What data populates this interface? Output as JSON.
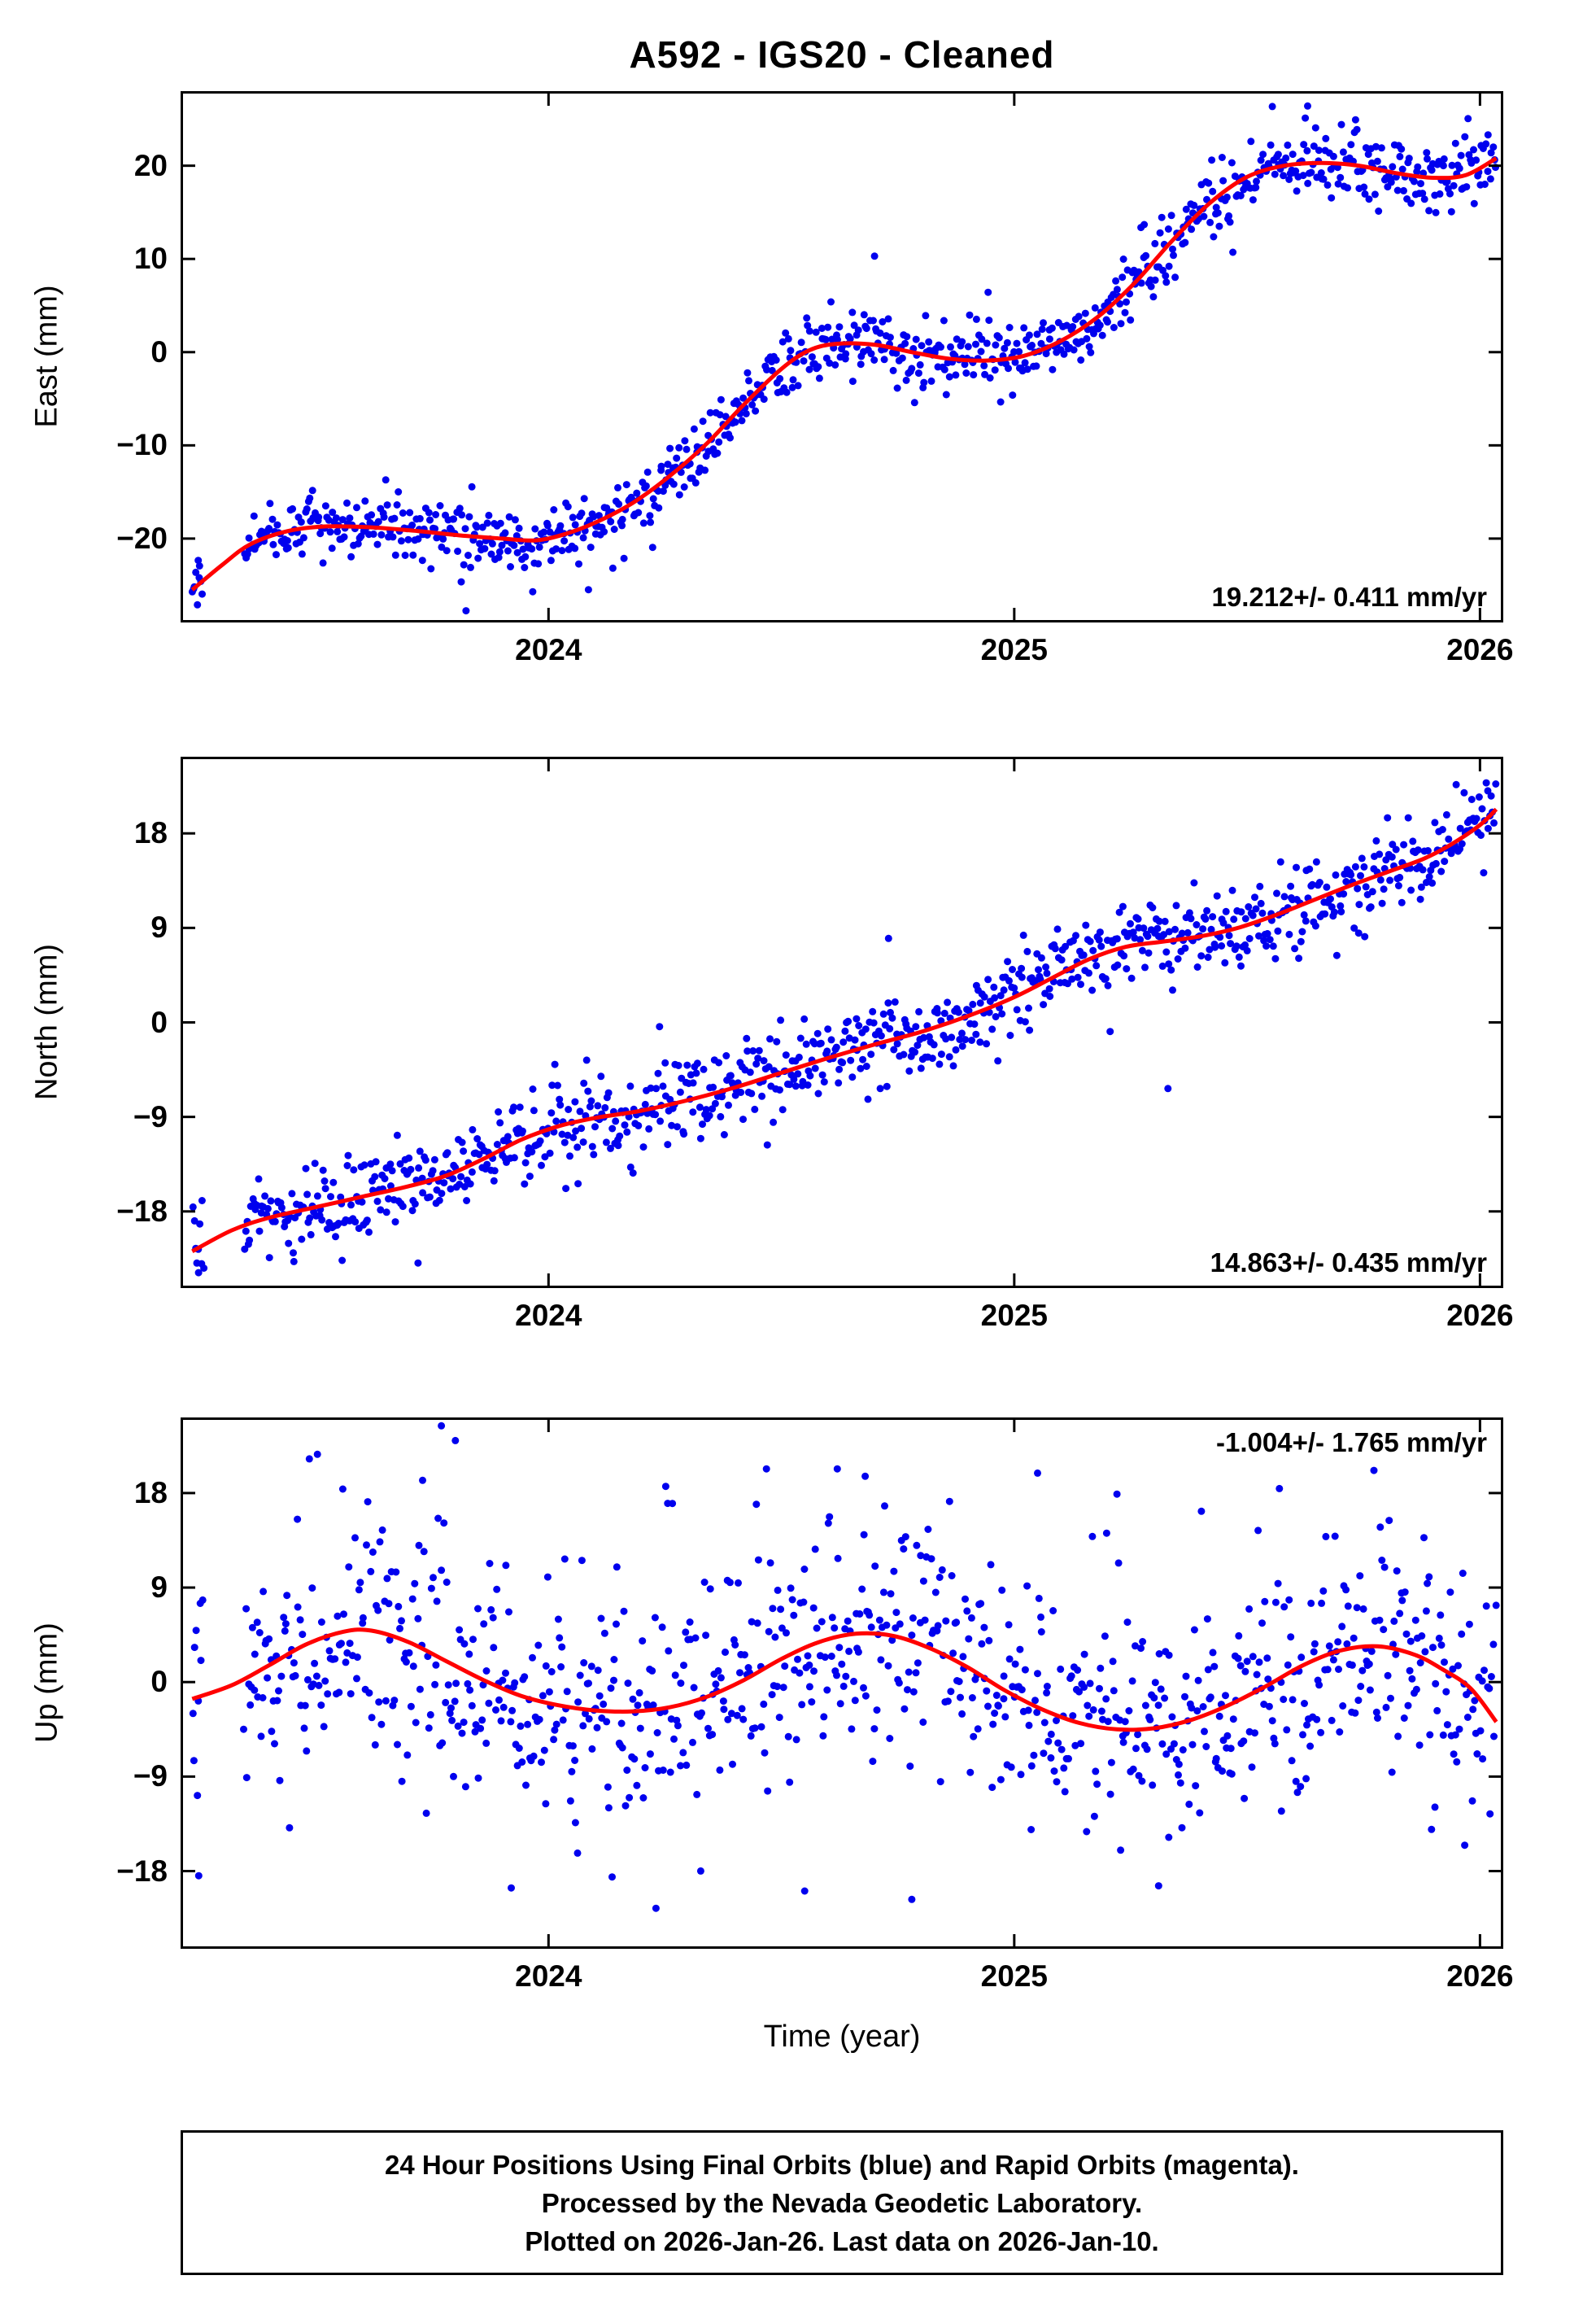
{
  "title": "A592  - IGS20 - Cleaned",
  "xlabel": "Time (year)",
  "caption": {
    "line1": "24 Hour Positions Using Final Orbits (blue) and Rapid Orbits (magenta).",
    "line2": "Processed by the Nevada Geodetic Laboratory.",
    "line3": "Plotted on 2026-Jan-26. Last data on 2026-Jan-10."
  },
  "colors": {
    "points": "#0000ee",
    "trend": "#ff0000",
    "frame": "#000000"
  },
  "chart_data": [
    {
      "type": "scatter",
      "panel": "east",
      "ylabel": "East (mm)",
      "rate_label": "19.212+/- 0.411 mm/yr",
      "rate_position": "bottom-right",
      "xlim": [
        2023.21,
        2026.05
      ],
      "ylim": [
        -29,
        28
      ],
      "xticks": [
        2024,
        2025,
        2026
      ],
      "yticks": [
        -20,
        -10,
        0,
        10,
        20
      ],
      "x_start": 2023.235,
      "x_end": 2026.035,
      "n_points": 940,
      "gaps": [
        [
          2023.26,
          2023.345
        ]
      ],
      "noise_sd": 1.7,
      "noise_sd2": 3.2,
      "mix": 0.1,
      "seed": 7,
      "trend": [
        [
          2023.235,
          -25.5
        ],
        [
          2023.3,
          -22.8
        ],
        [
          2023.36,
          -20.6
        ],
        [
          2023.44,
          -19.2
        ],
        [
          2023.52,
          -18.7
        ],
        [
          2023.62,
          -18.8
        ],
        [
          2023.72,
          -19.2
        ],
        [
          2023.82,
          -19.7
        ],
        [
          2023.9,
          -20.0
        ],
        [
          2023.97,
          -20.2
        ],
        [
          2024.03,
          -19.6
        ],
        [
          2024.1,
          -18.3
        ],
        [
          2024.18,
          -16.2
        ],
        [
          2024.26,
          -13.3
        ],
        [
          2024.34,
          -9.8
        ],
        [
          2024.42,
          -5.6
        ],
        [
          2024.5,
          -1.8
        ],
        [
          2024.56,
          0.2
        ],
        [
          2024.62,
          0.9
        ],
        [
          2024.7,
          0.8
        ],
        [
          2024.78,
          0.0
        ],
        [
          2024.86,
          -0.7
        ],
        [
          2024.94,
          -0.9
        ],
        [
          2025.02,
          -0.4
        ],
        [
          2025.1,
          1.2
        ],
        [
          2025.18,
          3.8
        ],
        [
          2025.26,
          7.5
        ],
        [
          2025.34,
          12.0
        ],
        [
          2025.42,
          16.0
        ],
        [
          2025.5,
          18.8
        ],
        [
          2025.58,
          20.0
        ],
        [
          2025.66,
          20.3
        ],
        [
          2025.74,
          20.0
        ],
        [
          2025.82,
          19.2
        ],
        [
          2025.9,
          18.7
        ],
        [
          2025.97,
          19.0
        ],
        [
          2026.035,
          20.8
        ]
      ],
      "extra_points": [
        [
          2023.238,
          -25.4
        ],
        [
          2023.25,
          -24.2
        ]
      ],
      "outliers": [
        [
          2024.7,
          10.3
        ],
        [
          2025.63,
          26.4
        ]
      ]
    },
    {
      "type": "scatter",
      "panel": "north",
      "ylabel": "North (mm)",
      "rate_label": "14.863+/- 0.435 mm/yr",
      "rate_position": "bottom-right",
      "xlim": [
        2023.21,
        2026.05
      ],
      "ylim": [
        -25.3,
        25.3
      ],
      "xticks": [
        2024,
        2025,
        2026
      ],
      "yticks": [
        -18,
        -9,
        0,
        9,
        18
      ],
      "x_start": 2023.235,
      "x_end": 2026.035,
      "n_points": 940,
      "gaps": [
        [
          2023.26,
          2023.345
        ]
      ],
      "noise_sd": 1.9,
      "noise_sd2": 3.2,
      "mix": 0.1,
      "seed": 13,
      "trend": [
        [
          2023.235,
          -21.8
        ],
        [
          2023.32,
          -19.8
        ],
        [
          2023.4,
          -18.6
        ],
        [
          2023.5,
          -17.6
        ],
        [
          2023.6,
          -16.6
        ],
        [
          2023.7,
          -15.6
        ],
        [
          2023.78,
          -14.6
        ],
        [
          2023.86,
          -13.0
        ],
        [
          2023.94,
          -11.2
        ],
        [
          2024.02,
          -9.9
        ],
        [
          2024.1,
          -9.1
        ],
        [
          2024.2,
          -8.4
        ],
        [
          2024.3,
          -7.4
        ],
        [
          2024.4,
          -6.2
        ],
        [
          2024.5,
          -4.8
        ],
        [
          2024.6,
          -3.4
        ],
        [
          2024.7,
          -2.1
        ],
        [
          2024.8,
          -0.9
        ],
        [
          2024.9,
          0.6
        ],
        [
          2025.0,
          2.4
        ],
        [
          2025.08,
          4.2
        ],
        [
          2025.16,
          6.0
        ],
        [
          2025.24,
          7.2
        ],
        [
          2025.32,
          7.7
        ],
        [
          2025.4,
          8.2
        ],
        [
          2025.48,
          9.0
        ],
        [
          2025.56,
          10.2
        ],
        [
          2025.64,
          11.6
        ],
        [
          2025.72,
          13.0
        ],
        [
          2025.8,
          14.3
        ],
        [
          2025.88,
          15.6
        ],
        [
          2025.94,
          17.0
        ],
        [
          2026.0,
          18.8
        ],
        [
          2026.035,
          20.3
        ]
      ],
      "extra_points": [
        [
          2023.24,
          -18.9
        ],
        [
          2023.248,
          -21.6
        ]
      ],
      "outliers": [
        [
          2024.73,
          8.0
        ],
        [
          2025.33,
          -6.3
        ]
      ]
    },
    {
      "type": "scatter",
      "panel": "up",
      "ylabel": "Up (mm)",
      "rate_label": "-1.004+/- 1.765 mm/yr",
      "rate_position": "top-right",
      "xlim": [
        2023.21,
        2026.05
      ],
      "ylim": [
        -25.4,
        25.2
      ],
      "xticks": [
        2024,
        2025,
        2026
      ],
      "yticks": [
        -18,
        -9,
        0,
        9,
        18
      ],
      "x_start": 2023.235,
      "x_end": 2026.035,
      "n_points": 940,
      "gaps": [
        [
          2023.26,
          2023.345
        ]
      ],
      "noise_sd": 5.2,
      "noise_sd2": 8.8,
      "mix": 0.22,
      "seed": 42,
      "trend": [
        [
          2023.235,
          -1.6
        ],
        [
          2023.32,
          -0.3
        ],
        [
          2023.4,
          1.6
        ],
        [
          2023.48,
          3.6
        ],
        [
          2023.56,
          4.8
        ],
        [
          2023.62,
          4.9
        ],
        [
          2023.7,
          3.8
        ],
        [
          2023.78,
          2.0
        ],
        [
          2023.86,
          0.2
        ],
        [
          2023.94,
          -1.3
        ],
        [
          2024.02,
          -2.2
        ],
        [
          2024.1,
          -2.7
        ],
        [
          2024.18,
          -2.8
        ],
        [
          2024.26,
          -2.4
        ],
        [
          2024.34,
          -1.4
        ],
        [
          2024.42,
          0.2
        ],
        [
          2024.5,
          2.2
        ],
        [
          2024.58,
          3.8
        ],
        [
          2024.66,
          4.6
        ],
        [
          2024.74,
          4.4
        ],
        [
          2024.82,
          3.2
        ],
        [
          2024.9,
          1.4
        ],
        [
          2024.98,
          -0.8
        ],
        [
          2025.06,
          -2.6
        ],
        [
          2025.14,
          -3.9
        ],
        [
          2025.22,
          -4.5
        ],
        [
          2025.3,
          -4.4
        ],
        [
          2025.38,
          -3.6
        ],
        [
          2025.46,
          -2.2
        ],
        [
          2025.54,
          -0.4
        ],
        [
          2025.62,
          1.6
        ],
        [
          2025.7,
          3.0
        ],
        [
          2025.78,
          3.4
        ],
        [
          2025.86,
          2.6
        ],
        [
          2025.92,
          1.2
        ],
        [
          2025.98,
          -0.6
        ],
        [
          2026.035,
          -3.8
        ]
      ],
      "extra_points": [
        [
          2023.24,
          3.3
        ],
        [
          2023.248,
          -1.8
        ]
      ],
      "outliers": [
        [
          2023.77,
          24.4
        ],
        [
          2023.8,
          23.0
        ],
        [
          2023.92,
          -19.6
        ],
        [
          2024.55,
          -19.9
        ],
        [
          2024.62,
          20.3
        ],
        [
          2024.68,
          19.6
        ],
        [
          2024.78,
          -20.7
        ],
        [
          2025.05,
          19.9
        ],
        [
          2025.31,
          -19.4
        ]
      ]
    }
  ]
}
